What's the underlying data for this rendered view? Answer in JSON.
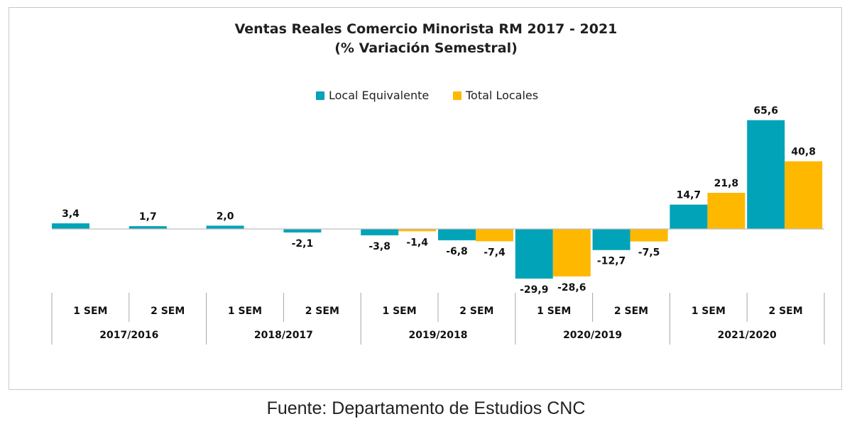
{
  "chart_data": {
    "type": "bar",
    "title": "Ventas Reales Comercio Minorista  RM 2017 - 2021",
    "subtitle": "(% Variación Semestral)",
    "categories": [
      "1 SEM",
      "2 SEM",
      "1 SEM",
      "2 SEM",
      "1 SEM",
      "2 SEM",
      "1 SEM",
      "2 SEM",
      "1 SEM",
      "2 SEM"
    ],
    "groups": [
      "2017/2016",
      "2018/2017",
      "2019/2018",
      "2020/2019",
      "2021/2020"
    ],
    "series": [
      {
        "name": "Local Equivalente",
        "color": "#00A3B8",
        "values": [
          3.4,
          1.7,
          2.0,
          -2.1,
          -3.8,
          -6.8,
          -29.9,
          -12.7,
          14.7,
          65.6
        ],
        "labels": [
          "3,4",
          "1,7",
          "2,0",
          "-2,1",
          "-3,8",
          "-6,8",
          "-29,9",
          "-12,7",
          "14,7",
          "65,6"
        ]
      },
      {
        "name": "Total Locales",
        "color": "#FFB800",
        "values": [
          null,
          null,
          null,
          null,
          -1.4,
          -7.4,
          -28.6,
          -7.5,
          21.8,
          40.8
        ],
        "labels": [
          "",
          "",
          "",
          "",
          "-1,4",
          "-7,4",
          "-28,6",
          "-7,5",
          "21,8",
          "40,8"
        ]
      }
    ],
    "legend_position": "top-center",
    "grid": false
  },
  "footer": {
    "source": "Fuente: Departamento de Estudios CNC"
  }
}
